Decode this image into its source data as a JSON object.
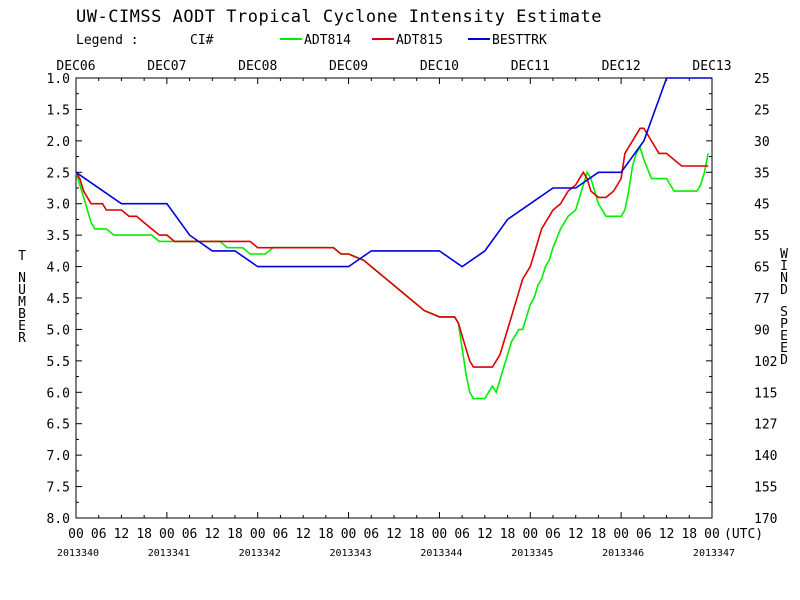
{
  "chart_data": {
    "type": "line",
    "title": "UW-CIMSS AODT Tropical Cyclone Intensity Estimate",
    "legend": {
      "label": "Legend :",
      "field": "CI#",
      "placement": "top",
      "entries": [
        {
          "name": "ADT814",
          "color": "#00ee00"
        },
        {
          "name": "ADT815",
          "color": "#dd0000"
        },
        {
          "name": "BESTTRK",
          "color": "#0000dd"
        }
      ]
    },
    "ylabel_left": "T NUMBER",
    "ylabel_right": "WIND SPEED",
    "ylim": [
      1.0,
      8.0
    ],
    "y_inverted": true,
    "y_ticks": [
      "1.0",
      "1.5",
      "2.0",
      "2.5",
      "3.0",
      "3.5",
      "4.0",
      "4.5",
      "5.0",
      "5.5",
      "6.0",
      "6.5",
      "7.0",
      "7.5",
      "8.0"
    ],
    "y_right_ticks": [
      "25",
      "25",
      "30",
      "35",
      "45",
      "55",
      "65",
      "77",
      "90",
      "102",
      "115",
      "127",
      "140",
      "155",
      "170"
    ],
    "x_unit": "hours since DEC06 00 UTC",
    "xlim": [
      0,
      168
    ],
    "x_top_labels": [
      {
        "label": "DEC06",
        "x": 0
      },
      {
        "label": "DEC07",
        "x": 24
      },
      {
        "label": "DEC08",
        "x": 48
      },
      {
        "label": "DEC09",
        "x": 72
      },
      {
        "label": "DEC10",
        "x": 96
      },
      {
        "label": "DEC11",
        "x": 120
      },
      {
        "label": "DEC12",
        "x": 144
      },
      {
        "label": "DEC13",
        "x": 168
      }
    ],
    "x_hour_labels": [
      "00",
      "06",
      "12",
      "18",
      "00",
      "06",
      "12",
      "18",
      "00",
      "06",
      "12",
      "18",
      "00",
      "06",
      "12",
      "18",
      "00",
      "06",
      "12",
      "18",
      "00",
      "06",
      "12",
      "18",
      "00",
      "06",
      "12",
      "18",
      "00"
    ],
    "x_hour_suffix": "(UTC)",
    "x_julian_labels": [
      {
        "label": "2013340",
        "x": 0
      },
      {
        "label": "2013341",
        "x": 24
      },
      {
        "label": "2013342",
        "x": 48
      },
      {
        "label": "2013343",
        "x": 72
      },
      {
        "label": "2013344",
        "x": 96
      },
      {
        "label": "2013345",
        "x": 120
      },
      {
        "label": "2013346",
        "x": 144
      },
      {
        "label": "2013347",
        "x": 168
      }
    ],
    "grid": false,
    "series": [
      {
        "name": "ADT814",
        "color": "#00ee00",
        "x": [
          0,
          1,
          2,
          3,
          4,
          5,
          6,
          7,
          8,
          10,
          12,
          14,
          16,
          18,
          20,
          22,
          24,
          26,
          28,
          30,
          32,
          34,
          36,
          38,
          40,
          44,
          46,
          48,
          50,
          52,
          56,
          60,
          64,
          68,
          70,
          72,
          76,
          80,
          84,
          88,
          92,
          96,
          98,
          99,
          100,
          101,
          102,
          103,
          104,
          105,
          106,
          107,
          108,
          109,
          110,
          111,
          112,
          113,
          114,
          115,
          116,
          117,
          118,
          120,
          121,
          122,
          123,
          124,
          125,
          126,
          128,
          130,
          132,
          133,
          134,
          135,
          136,
          138,
          140,
          142,
          144,
          145,
          146,
          147,
          148,
          149,
          150,
          152,
          154,
          156,
          158,
          160,
          162,
          164,
          165,
          166,
          167
        ],
        "y": [
          2.5,
          2.7,
          2.9,
          3.1,
          3.3,
          3.4,
          3.4,
          3.4,
          3.4,
          3.5,
          3.5,
          3.5,
          3.5,
          3.5,
          3.5,
          3.6,
          3.6,
          3.6,
          3.6,
          3.6,
          3.6,
          3.6,
          3.6,
          3.6,
          3.7,
          3.7,
          3.8,
          3.8,
          3.8,
          3.7,
          3.7,
          3.7,
          3.7,
          3.7,
          3.8,
          3.8,
          3.9,
          4.1,
          4.3,
          4.5,
          4.7,
          4.8,
          4.8,
          4.8,
          4.8,
          4.9,
          5.3,
          5.7,
          6.0,
          6.1,
          6.1,
          6.1,
          6.1,
          6.0,
          5.9,
          6.0,
          5.8,
          5.6,
          5.4,
          5.2,
          5.1,
          5.0,
          5.0,
          4.6,
          4.5,
          4.3,
          4.2,
          4.0,
          3.9,
          3.7,
          3.4,
          3.2,
          3.1,
          2.9,
          2.7,
          2.5,
          2.6,
          3.0,
          3.2,
          3.2,
          3.2,
          3.1,
          2.8,
          2.4,
          2.2,
          2.1,
          2.3,
          2.6,
          2.6,
          2.6,
          2.8,
          2.8,
          2.8,
          2.8,
          2.7,
          2.5,
          2.2
        ]
      },
      {
        "name": "ADT815",
        "color": "#dd0000",
        "x": [
          0,
          1,
          2,
          3,
          4,
          5,
          6,
          7,
          8,
          10,
          12,
          14,
          16,
          18,
          20,
          22,
          24,
          26,
          28,
          30,
          32,
          34,
          36,
          38,
          40,
          44,
          46,
          48,
          50,
          52,
          56,
          60,
          64,
          68,
          70,
          72,
          76,
          80,
          84,
          88,
          92,
          96,
          98,
          99,
          100,
          101,
          102,
          103,
          104,
          105,
          106,
          107,
          108,
          109,
          110,
          111,
          112,
          113,
          114,
          115,
          116,
          117,
          118,
          120,
          121,
          122,
          123,
          124,
          125,
          126,
          128,
          130,
          132,
          133,
          134,
          135,
          136,
          138,
          140,
          142,
          144,
          145,
          146,
          147,
          148,
          149,
          150,
          152,
          154,
          156,
          158,
          160,
          162,
          164,
          165,
          166,
          167
        ],
        "y": [
          2.5,
          2.6,
          2.8,
          2.9,
          3.0,
          3.0,
          3.0,
          3.0,
          3.1,
          3.1,
          3.1,
          3.2,
          3.2,
          3.3,
          3.4,
          3.5,
          3.5,
          3.6,
          3.6,
          3.6,
          3.6,
          3.6,
          3.6,
          3.6,
          3.6,
          3.6,
          3.6,
          3.7,
          3.7,
          3.7,
          3.7,
          3.7,
          3.7,
          3.7,
          3.8,
          3.8,
          3.9,
          4.1,
          4.3,
          4.5,
          4.7,
          4.8,
          4.8,
          4.8,
          4.8,
          4.9,
          5.1,
          5.3,
          5.5,
          5.6,
          5.6,
          5.6,
          5.6,
          5.6,
          5.6,
          5.5,
          5.4,
          5.2,
          5.0,
          4.8,
          4.6,
          4.4,
          4.2,
          4.0,
          3.8,
          3.6,
          3.4,
          3.3,
          3.2,
          3.1,
          3.0,
          2.8,
          2.7,
          2.6,
          2.5,
          2.6,
          2.8,
          2.9,
          2.9,
          2.8,
          2.6,
          2.2,
          2.1,
          2.0,
          1.9,
          1.8,
          1.8,
          2.0,
          2.2,
          2.2,
          2.3,
          2.4,
          2.4,
          2.4,
          2.4,
          2.4,
          2.4
        ]
      },
      {
        "name": "BESTTRK",
        "color": "#0000dd",
        "x": [
          0,
          12,
          24,
          30,
          36,
          42,
          48,
          54,
          60,
          66,
          72,
          78,
          84,
          90,
          96,
          102,
          108,
          114,
          120,
          126,
          132,
          138,
          144,
          150,
          156,
          162,
          168
        ],
        "y": [
          2.5,
          3.0,
          3.0,
          3.5,
          3.75,
          3.75,
          4.0,
          4.0,
          4.0,
          4.0,
          4.0,
          3.75,
          3.75,
          3.75,
          3.75,
          4.0,
          3.75,
          3.25,
          3.0,
          2.75,
          2.75,
          2.5,
          2.5,
          2.0,
          1.0,
          1.0,
          1.0
        ]
      }
    ]
  }
}
